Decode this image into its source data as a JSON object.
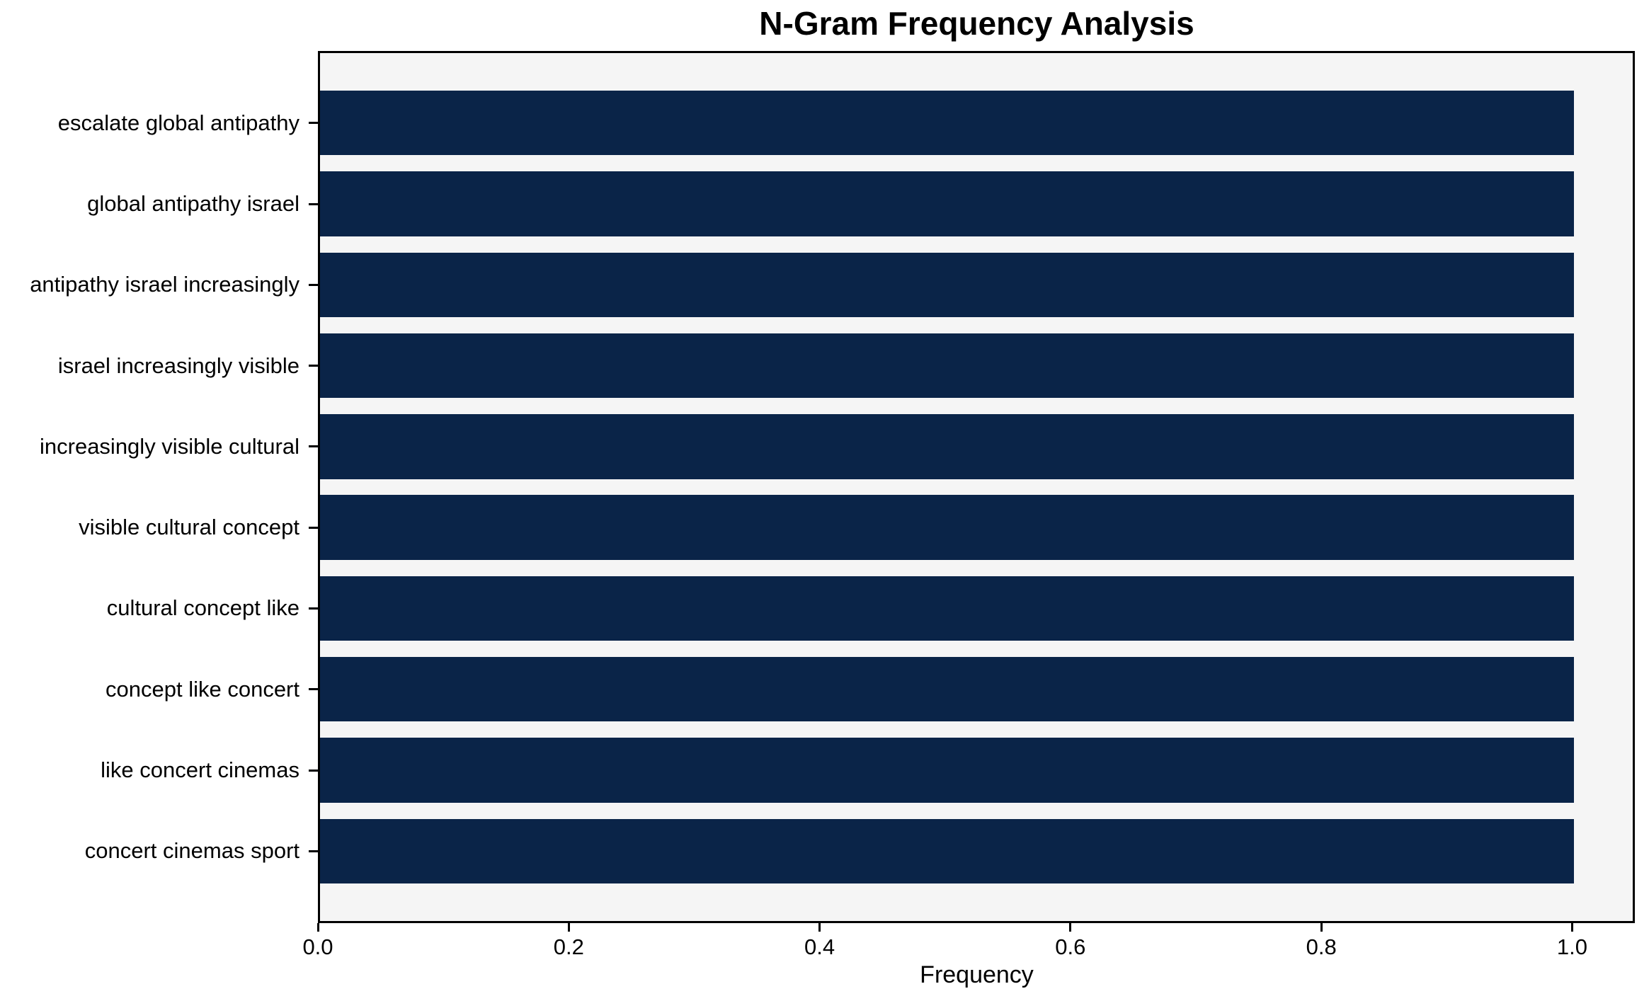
{
  "figure": {
    "title": "N-Gram Frequency Analysis"
  },
  "chart_data": {
    "type": "bar",
    "orientation": "horizontal",
    "title": "N-Gram Frequency Analysis",
    "xlabel": "Frequency",
    "ylabel": "",
    "categories": [
      "escalate global antipathy",
      "global antipathy israel",
      "antipathy israel increasingly",
      "israel increasingly visible",
      "increasingly visible cultural",
      "visible cultural concept",
      "cultural concept like",
      "concept like concert",
      "like concert cinemas",
      "concert cinemas sport"
    ],
    "values": [
      1.0,
      1.0,
      1.0,
      1.0,
      1.0,
      1.0,
      1.0,
      1.0,
      1.0,
      1.0
    ],
    "xlim": [
      0,
      1.05
    ],
    "xticks": [
      0.0,
      0.2,
      0.4,
      0.6,
      0.8,
      1.0
    ],
    "xtick_labels": [
      "0.0",
      "0.2",
      "0.4",
      "0.6",
      "0.8",
      "1.0"
    ],
    "grid": false,
    "legend": null,
    "colors": {
      "bar": "#0a2448",
      "plot_background": "#f5f5f5",
      "figure_background": "#ffffff",
      "axis": "#000000",
      "text": "#000000"
    }
  }
}
